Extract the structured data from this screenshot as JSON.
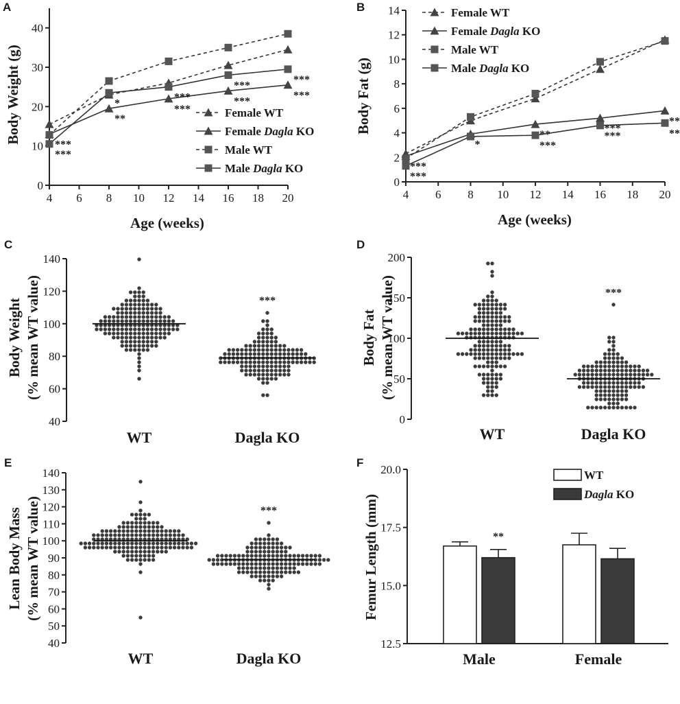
{
  "chart_data": [
    {
      "panel": "A",
      "type": "line",
      "xlabel": "Age (weeks)",
      "ylabel": "Body Weight (g)",
      "xlim": [
        4,
        20
      ],
      "ylim": [
        0,
        45
      ],
      "xticks": [
        4,
        6,
        8,
        10,
        12,
        14,
        16,
        18,
        20
      ],
      "yticks": [
        0,
        10,
        20,
        30,
        40
      ],
      "x": [
        4,
        8,
        12,
        16,
        20
      ],
      "legend_position": "bottom-right",
      "series": [
        {
          "name": "Female WT",
          "prefix": "Female ",
          "italic": "",
          "suffix": "WT",
          "marker": "triangle",
          "dashed": true,
          "values": [
            15.5,
            23.0,
            26.0,
            30.5,
            34.5
          ]
        },
        {
          "name": "Female Dagla KO",
          "prefix": "Female ",
          "italic": "Dagla",
          "suffix": " KO",
          "marker": "triangle",
          "dashed": false,
          "values": [
            13.0,
            19.5,
            22.0,
            24.0,
            25.5
          ],
          "significance": [
            "***",
            "**",
            "***",
            "***",
            "***"
          ]
        },
        {
          "name": "Male WT",
          "prefix": "Male ",
          "italic": "",
          "suffix": "WT",
          "marker": "square",
          "dashed": true,
          "values": [
            12.8,
            26.5,
            31.5,
            35.0,
            38.5
          ]
        },
        {
          "name": "Male Dagla KO",
          "prefix": "Male ",
          "italic": "Dagla",
          "suffix": " KO",
          "marker": "square",
          "dashed": false,
          "values": [
            10.5,
            23.5,
            25.0,
            28.0,
            29.5
          ],
          "significance": [
            "***",
            "*",
            "***",
            "***",
            "***"
          ]
        }
      ]
    },
    {
      "panel": "B",
      "type": "line",
      "xlabel": "Age (weeks)",
      "ylabel": "Body Fat (g)",
      "xlim": [
        4,
        20
      ],
      "ylim": [
        0,
        14
      ],
      "xticks": [
        4,
        6,
        8,
        10,
        12,
        14,
        16,
        18,
        20
      ],
      "yticks": [
        0,
        2,
        4,
        6,
        8,
        10,
        12,
        14
      ],
      "x": [
        4,
        8,
        12,
        16,
        20
      ],
      "legend_position": "top-left",
      "series": [
        {
          "name": "Female WT",
          "prefix": "Female ",
          "italic": "",
          "suffix": "WT",
          "marker": "triangle",
          "dashed": true,
          "values": [
            2.3,
            5.0,
            6.8,
            9.2,
            11.6
          ]
        },
        {
          "name": "Female Dagla KO",
          "prefix": "Female ",
          "italic": "Dagla",
          "suffix": " KO",
          "marker": "triangle",
          "dashed": false,
          "values": [
            2.1,
            3.9,
            4.7,
            5.2,
            5.8
          ],
          "significance": [
            "***",
            "*",
            "**",
            "***",
            "***"
          ]
        },
        {
          "name": "Male WT",
          "prefix": "Male ",
          "italic": "",
          "suffix": "WT",
          "marker": "square",
          "dashed": true,
          "values": [
            1.9,
            5.3,
            7.2,
            9.8,
            11.5
          ]
        },
        {
          "name": "Male Dagla KO",
          "prefix": "Male ",
          "italic": "Dagla",
          "suffix": " KO",
          "marker": "square",
          "dashed": false,
          "values": [
            1.3,
            3.7,
            3.8,
            4.6,
            4.8
          ],
          "significance": [
            "***",
            "",
            "***",
            "***",
            "***"
          ]
        }
      ]
    },
    {
      "panel": "C",
      "type": "scatter",
      "ylabel": "Body Weight (% mean WT value)",
      "ylim": [
        40,
        140
      ],
      "yticks": [
        40,
        60,
        80,
        100,
        120,
        140
      ],
      "categories": [
        "WT",
        "Dagla KO"
      ],
      "groups": [
        {
          "name": "WT",
          "mean": 100,
          "min": 66,
          "max": 140,
          "n": 180,
          "spread": 9
        },
        {
          "name": "Dagla KO",
          "mean": 79,
          "min": 56,
          "max": 107,
          "n": 160,
          "spread": 8,
          "significance": "***"
        }
      ]
    },
    {
      "panel": "D",
      "type": "scatter",
      "ylabel": "Body Fat (% mean WT value)",
      "ylim": [
        0,
        200
      ],
      "yticks": [
        0,
        50,
        100,
        150,
        200
      ],
      "categories": [
        "WT",
        "Dagla KO"
      ],
      "groups": [
        {
          "name": "WT",
          "mean": 100,
          "min": 29,
          "max": 193,
          "n": 180,
          "spread": 30
        },
        {
          "name": "Dagla KO",
          "mean": 50,
          "min": 15,
          "max": 142,
          "n": 160,
          "spread": 20,
          "significance": "***"
        }
      ]
    },
    {
      "panel": "E",
      "type": "scatter",
      "ylabel": "Lean Body Mass (% mean WT value)",
      "ylim": [
        40,
        140
      ],
      "yticks": [
        40,
        50,
        60,
        70,
        80,
        90,
        100,
        110,
        120,
        130,
        140
      ],
      "categories": [
        "WT",
        "Dagla KO"
      ],
      "groups": [
        {
          "name": "WT",
          "mean": 100,
          "min": 56,
          "max": 134,
          "n": 180,
          "spread": 7
        },
        {
          "name": "Dagla KO",
          "mean": 89,
          "min": 73,
          "max": 111,
          "n": 160,
          "spread": 6,
          "significance": "***"
        }
      ]
    },
    {
      "panel": "F",
      "type": "bar",
      "ylabel": "Femur Length (mm)",
      "ylim": [
        12.5,
        20.0
      ],
      "yticks": [
        "12.5",
        "15.0",
        "17.5",
        "20.0"
      ],
      "categories": [
        "Male",
        "Female"
      ],
      "legend_position": "top-right",
      "series": [
        {
          "name": "WT",
          "prefix": "",
          "italic": "",
          "suffix": "WT",
          "fill": "#ffffff",
          "values": [
            16.7,
            16.75
          ],
          "errors": [
            0.18,
            0.5
          ]
        },
        {
          "name": "Dagla KO",
          "prefix": "",
          "italic": "Dagla",
          "suffix": " KO",
          "fill": "#3a3a3a",
          "values": [
            16.2,
            16.15
          ],
          "errors": [
            0.35,
            0.45
          ],
          "significance": [
            "**",
            ""
          ]
        }
      ]
    }
  ]
}
